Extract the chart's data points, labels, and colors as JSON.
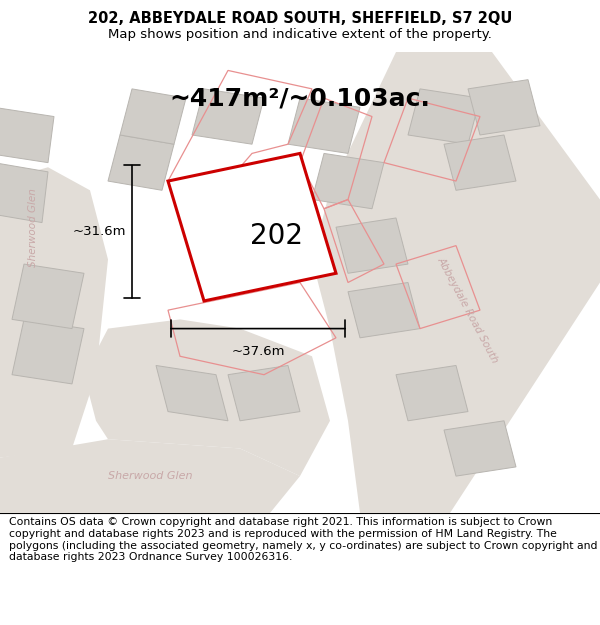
{
  "title_line1": "202, ABBEYDALE ROAD SOUTH, SHEFFIELD, S7 2QU",
  "title_line2": "Map shows position and indicative extent of the property.",
  "area_label": "~417m²/~0.103ac.",
  "plot_number": "202",
  "dim_width": "~37.6m",
  "dim_height": "~31.6m",
  "map_bg": "#f2f0ed",
  "road_bg": "#e8e5e0",
  "building_fill": "#d0cdc8",
  "building_stroke": "#b8b5b0",
  "plot_fill": "#ffffff",
  "plot_stroke": "#cc0000",
  "road_label_color": "#c8a8a8",
  "neighbor_stroke": "#e89090",
  "footer_text": "Contains OS data © Crown copyright and database right 2021. This information is subject to Crown copyright and database rights 2023 and is reproduced with the permission of HM Land Registry. The polygons (including the associated geometry, namely x, y co-ordinates) are subject to Crown copyright and database rights 2023 Ordnance Survey 100026316.",
  "title_fontsize": 10.5,
  "subtitle_fontsize": 9.5,
  "footer_fontsize": 7.8,
  "area_fontsize": 18,
  "plot_num_fontsize": 20,
  "dim_fontsize": 9.5
}
